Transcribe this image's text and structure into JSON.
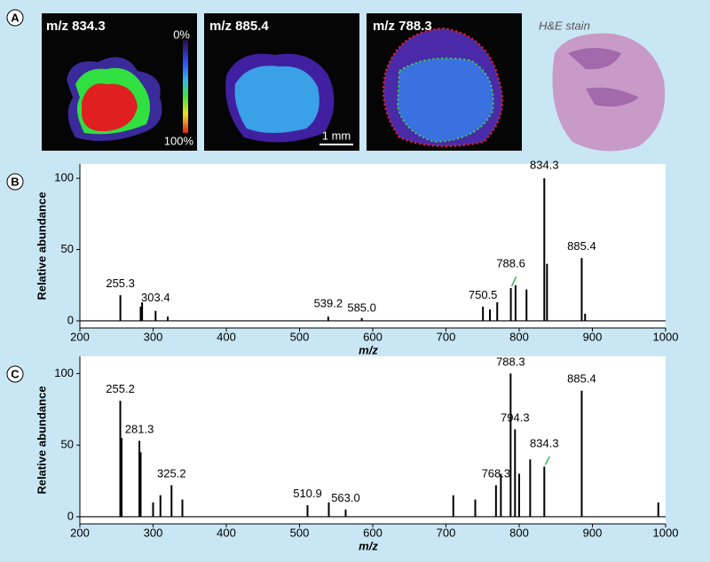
{
  "panel_labels": [
    "A",
    "B",
    "C"
  ],
  "images": {
    "labels": [
      "m/z 834.3",
      "m/z 885.4",
      "m/z 788.3",
      "H&E stain"
    ],
    "colorbar": [
      "0%",
      "100%"
    ],
    "scale_bar": "1 mm"
  },
  "chart_data": [
    {
      "type": "stem",
      "x_label": "m/z",
      "y_label": "Relative abundance",
      "color": "#000000",
      "x": [
        255.3,
        283,
        285,
        303.4,
        320,
        539.2,
        585.0,
        750.5,
        760,
        770,
        788.6,
        795,
        810,
        834.3,
        838,
        885.4,
        890
      ],
      "values": [
        18,
        10,
        13,
        7,
        3,
        3,
        2,
        10,
        8,
        13,
        23,
        25,
        22,
        100,
        40,
        44,
        5
      ],
      "xlim": [
        200,
        1000
      ],
      "xticks": [
        200,
        300,
        400,
        500,
        600,
        700,
        800,
        900,
        1000
      ],
      "ylim": [
        -5,
        110
      ],
      "yticks": [
        0,
        50,
        100
      ],
      "annotations": [
        {
          "text": "255.3",
          "x": 255.3,
          "y": 22
        },
        {
          "text": "303.4",
          "x": 303.4,
          "y": 12
        },
        {
          "text": "539.2",
          "x": 539.2,
          "y": 8
        },
        {
          "text": "585.0",
          "x": 585.0,
          "y": 5
        },
        {
          "text": "750.5",
          "x": 750.5,
          "y": 14
        },
        {
          "text": "788.6",
          "x": 788.6,
          "y": 36,
          "leader_color": "#3cb44b"
        },
        {
          "text": "834.3",
          "x": 834.3,
          "y": 105
        },
        {
          "text": "885.4",
          "x": 885.4,
          "y": 48
        }
      ]
    },
    {
      "type": "stem",
      "x_label": "m/z",
      "y_label": "Relative abundance",
      "color": "#000000",
      "x": [
        255.2,
        257,
        281.3,
        283,
        300,
        310,
        325.2,
        340,
        510.9,
        540,
        563.0,
        710,
        740,
        768.3,
        775,
        788.3,
        794.3,
        800,
        815,
        834.3,
        885.4,
        990
      ],
      "values": [
        81,
        55,
        53,
        45,
        10,
        15,
        22,
        12,
        8,
        10,
        5,
        15,
        12,
        22,
        30,
        100,
        61,
        30,
        40,
        35,
        88,
        10
      ],
      "xlim": [
        200,
        1000
      ],
      "xticks": [
        200,
        300,
        400,
        500,
        600,
        700,
        800,
        900,
        1000
      ],
      "ylim": [
        -5,
        112
      ],
      "yticks": [
        0,
        50,
        100
      ],
      "annotations": [
        {
          "text": "255.2",
          "x": 255.2,
          "y": 85
        },
        {
          "text": "281.3",
          "x": 281.3,
          "y": 57
        },
        {
          "text": "325.2",
          "x": 325.2,
          "y": 26
        },
        {
          "text": "510.9",
          "x": 510.9,
          "y": 12
        },
        {
          "text": "563.0",
          "x": 563.0,
          "y": 9
        },
        {
          "text": "768.3",
          "x": 768.3,
          "y": 26
        },
        {
          "text": "788.3",
          "x": 788.3,
          "y": 104
        },
        {
          "text": "794.3",
          "x": 794.3,
          "y": 65
        },
        {
          "text": "834.3",
          "x": 834.3,
          "y": 47,
          "leader_color": "#3cb44b"
        },
        {
          "text": "885.4",
          "x": 885.4,
          "y": 92
        }
      ]
    }
  ]
}
